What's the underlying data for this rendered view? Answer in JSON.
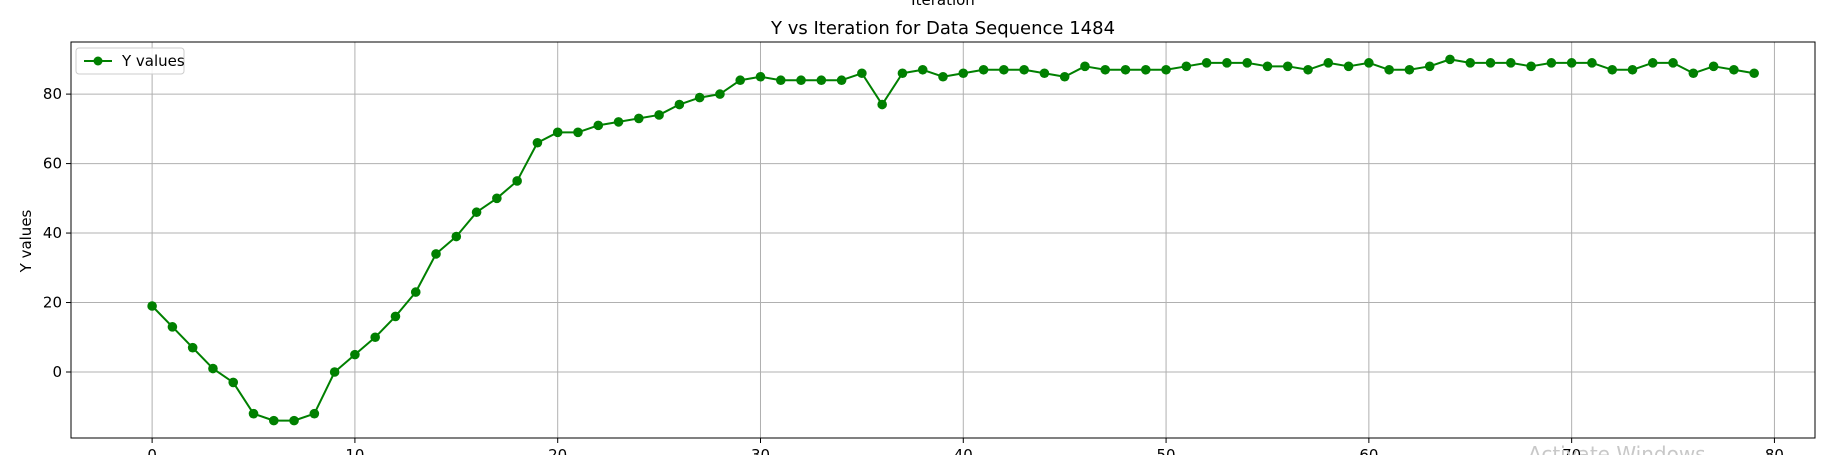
{
  "chart_data": {
    "type": "line",
    "title": "Y vs Iteration for Data Sequence 1484",
    "top_label": "Iteration",
    "xlabel": "",
    "ylabel": "Y values",
    "xlim": [
      -4,
      82
    ],
    "ylim": [
      -19,
      95
    ],
    "xticks": [
      0,
      10,
      20,
      30,
      40,
      50,
      60,
      70,
      80
    ],
    "yticks": [
      0,
      20,
      40,
      60,
      80
    ],
    "grid": true,
    "legend": "upper left",
    "series": [
      {
        "name": "Y values",
        "color": "#008000",
        "marker": "circle",
        "x": [
          0,
          1,
          2,
          3,
          4,
          5,
          6,
          7,
          8,
          9,
          10,
          11,
          12,
          13,
          14,
          15,
          16,
          17,
          18,
          19,
          20,
          21,
          22,
          23,
          24,
          25,
          26,
          27,
          28,
          29,
          30,
          31,
          32,
          33,
          34,
          35,
          36,
          37,
          38,
          39,
          40,
          41,
          42,
          43,
          44,
          45,
          46,
          47,
          48,
          49,
          50,
          51,
          52,
          53,
          54,
          55,
          56,
          57,
          58,
          59,
          60,
          61,
          62,
          63,
          64,
          65,
          66,
          67,
          68,
          69,
          70,
          71,
          72,
          73,
          74,
          75,
          76,
          77,
          78,
          79
        ],
        "y": [
          19,
          13,
          7,
          1,
          -3,
          -12,
          -14,
          -14,
          -12,
          0,
          5,
          10,
          16,
          23,
          34,
          39,
          46,
          50,
          55,
          66,
          69,
          69,
          71,
          72,
          73,
          74,
          77,
          79,
          80,
          84,
          85,
          84,
          84,
          84,
          84,
          86,
          77,
          86,
          87,
          85,
          86,
          87,
          87,
          87,
          86,
          85,
          88,
          87,
          87,
          87,
          87,
          88,
          89,
          89,
          89,
          88,
          88,
          87,
          89,
          88,
          89,
          87,
          87,
          88,
          90,
          89,
          89,
          89,
          88,
          89,
          89,
          89,
          87,
          87,
          89,
          89,
          86,
          88,
          87,
          86
        ]
      }
    ]
  },
  "watermark": {
    "text": "Activate Windows"
  }
}
